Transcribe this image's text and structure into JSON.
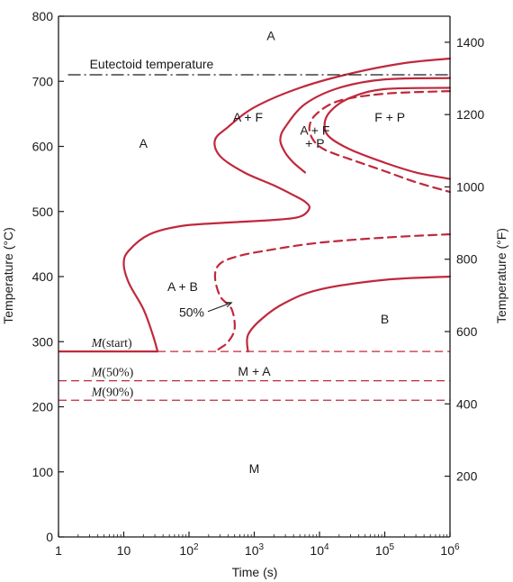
{
  "chart_data": {
    "type": "line",
    "title": "",
    "xlabel": "Time (s)",
    "ylabel": "Temperature (°C)",
    "y2label": "Temperature (°F)",
    "x_scale": "log",
    "xlim": [
      1,
      1000000
    ],
    "ylim": [
      0,
      800
    ],
    "y2lim": [
      32,
      1472
    ],
    "x_ticks": [
      {
        "value": 1,
        "base": "1",
        "exp": ""
      },
      {
        "value": 10,
        "base": "10",
        "exp": ""
      },
      {
        "value": 100,
        "base": "10",
        "exp": "2"
      },
      {
        "value": 1000,
        "base": "10",
        "exp": "3"
      },
      {
        "value": 10000,
        "base": "10",
        "exp": "4"
      },
      {
        "value": 100000,
        "base": "10",
        "exp": "5"
      },
      {
        "value": 1000000,
        "base": "10",
        "exp": "6"
      }
    ],
    "y_ticks": [
      "0",
      "100",
      "200",
      "300",
      "400",
      "500",
      "600",
      "700",
      "800"
    ],
    "y2_ticks": [
      "200",
      "400",
      "600",
      "800",
      "1000",
      "1200",
      "1400"
    ],
    "grid": false,
    "colors": {
      "curve": "#c0283c",
      "axis": "#1a1a1a",
      "eutectoid": "#1a1a1a",
      "mline": "#c0283c"
    },
    "horizontal_lines": [
      {
        "name": "eutectoid",
        "label": "Eutectoid temperature",
        "y": 710,
        "style": "dashdot"
      },
      {
        "name": "m-start",
        "label_prefix": "M",
        "label_suffix": "(start)",
        "y": 285,
        "style": "mixed"
      },
      {
        "name": "m-50",
        "label_prefix": "M",
        "label_suffix": "(50%)",
        "y": 240,
        "style": "dashed"
      },
      {
        "name": "m-90",
        "label_prefix": "M",
        "label_suffix": "(90%)",
        "y": 210,
        "style": "dashed"
      }
    ],
    "series": [
      {
        "id": "af-start",
        "style": "solid",
        "points": [
          [
            1000000,
            735
          ],
          [
            200000,
            728
          ],
          [
            30000,
            712
          ],
          [
            5000,
            690
          ],
          [
            1000,
            660
          ],
          [
            400,
            630
          ],
          [
            250,
            610
          ],
          [
            300,
            585
          ],
          [
            700,
            560
          ],
          [
            2000,
            540
          ],
          [
            4000,
            525
          ],
          [
            6000,
            515
          ],
          [
            7000,
            505
          ],
          [
            5000,
            492
          ],
          [
            2000,
            487
          ],
          [
            400,
            483
          ],
          [
            80,
            478
          ],
          [
            25,
            465
          ],
          [
            12,
            440
          ],
          [
            10,
            420
          ],
          [
            12,
            390
          ],
          [
            20,
            350
          ],
          [
            28,
            310
          ],
          [
            33,
            285
          ]
        ]
      },
      {
        "id": "ap-start",
        "style": "solid",
        "points": [
          [
            1000000,
            705
          ],
          [
            100000,
            703
          ],
          [
            20000,
            690
          ],
          [
            6000,
            665
          ],
          [
            3000,
            630
          ],
          [
            2500,
            610
          ],
          [
            3000,
            590
          ],
          [
            4000,
            575
          ],
          [
            6000,
            560
          ]
        ]
      },
      {
        "id": "fp-finish",
        "style": "solid",
        "points": [
          [
            1000000,
            690
          ],
          [
            100000,
            688
          ],
          [
            30000,
            675
          ],
          [
            15000,
            655
          ],
          [
            12000,
            635
          ],
          [
            14000,
            615
          ],
          [
            30000,
            595
          ],
          [
            100000,
            575
          ],
          [
            300000,
            560
          ],
          [
            1000000,
            550
          ]
        ]
      },
      {
        "id": "ap-50",
        "style": "dashed",
        "points": [
          [
            1000000,
            685
          ],
          [
            100000,
            681
          ],
          [
            20000,
            670
          ],
          [
            9000,
            650
          ],
          [
            7000,
            630
          ],
          [
            8000,
            610
          ],
          [
            12000,
            595
          ],
          [
            30000,
            580
          ],
          [
            100000,
            562
          ],
          [
            300000,
            545
          ],
          [
            1000000,
            530
          ]
        ]
      },
      {
        "id": "b-50",
        "style": "dashed",
        "points": [
          [
            1000000,
            465
          ],
          [
            100000,
            460
          ],
          [
            10000,
            452
          ],
          [
            2000,
            442
          ],
          [
            600,
            432
          ],
          [
            300,
            420
          ],
          [
            250,
            400
          ],
          [
            300,
            370
          ],
          [
            450,
            350
          ],
          [
            500,
            320
          ],
          [
            400,
            300
          ],
          [
            300,
            290
          ],
          [
            250,
            285
          ]
        ]
      },
      {
        "id": "b-finish",
        "style": "solid",
        "points": [
          [
            1000000,
            400
          ],
          [
            100000,
            395
          ],
          [
            10000,
            380
          ],
          [
            3000,
            360
          ],
          [
            1300,
            335
          ],
          [
            800,
            310
          ],
          [
            800,
            285
          ]
        ]
      }
    ],
    "regions": [
      {
        "name": "region-a-top",
        "text": "A",
        "x": 1800,
        "y": 770
      },
      {
        "name": "region-a-left",
        "text": "A",
        "x": 20,
        "y": 605
      },
      {
        "name": "region-a-f",
        "text": "A + F",
        "x": 800,
        "y": 645
      },
      {
        "name": "region-a-f-p-line1",
        "text": "A + F",
        "x": 8500,
        "y": 625
      },
      {
        "name": "region-a-f-p-line2",
        "text": "+ P",
        "x": 8500,
        "y": 605
      },
      {
        "name": "region-f-p",
        "text": "F + P",
        "x": 120000,
        "y": 645
      },
      {
        "name": "region-a-b",
        "text": "A + B",
        "x": 80,
        "y": 385
      },
      {
        "name": "region-b",
        "text": "B",
        "x": 100000,
        "y": 335
      },
      {
        "name": "region-m-a",
        "text": "M + A",
        "x": 1000,
        "y": 255
      },
      {
        "name": "region-m",
        "text": "M",
        "x": 1000,
        "y": 105
      }
    ],
    "annotations": [
      {
        "name": "label-50-percent",
        "text": "50%",
        "x": 110,
        "y": 345,
        "arrow_to": [
          450,
          360
        ]
      }
    ]
  }
}
